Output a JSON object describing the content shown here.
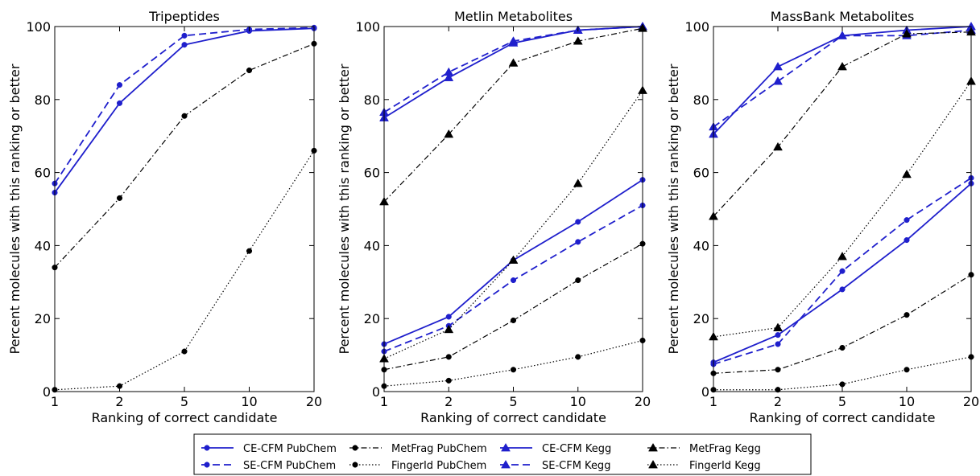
{
  "chart_data": [
    {
      "type": "line",
      "title": "Tripeptides",
      "xlabel": "Ranking of correct candidate",
      "ylabel": "Percent molecules with this ranking or better",
      "categories": [
        "1",
        "2",
        "5",
        "10",
        "20"
      ],
      "ylim": [
        0,
        100
      ],
      "yticks": [
        0,
        20,
        40,
        60,
        80,
        100
      ],
      "grid": false,
      "series": [
        {
          "name": "CE-CFM PubChem",
          "color": "#1f1fcc",
          "style": "solid",
          "marker": "circle",
          "values": [
            54.5,
            79,
            95,
            98.8,
            99.5
          ]
        },
        {
          "name": "SE-CFM PubChem",
          "color": "#1f1fcc",
          "style": "dashed",
          "marker": "circle",
          "values": [
            57,
            84,
            97.5,
            99.2,
            99.7
          ]
        },
        {
          "name": "MetFrag PubChem",
          "color": "#000000",
          "style": "dashdot",
          "marker": "circle",
          "values": [
            34,
            53,
            75.5,
            88,
            95.3
          ]
        },
        {
          "name": "FingerId PubChem",
          "color": "#000000",
          "style": "dotted",
          "marker": "circle",
          "values": [
            0.5,
            1.5,
            11,
            38.5,
            66
          ]
        }
      ]
    },
    {
      "type": "line",
      "title": "Metlin Metabolites",
      "xlabel": "Ranking of correct candidate",
      "ylabel": "Percent molecules with this ranking or better",
      "categories": [
        "1",
        "2",
        "5",
        "10",
        "20"
      ],
      "ylim": [
        0,
        100
      ],
      "yticks": [
        0,
        20,
        40,
        60,
        80,
        100
      ],
      "grid": false,
      "series": [
        {
          "name": "CE-CFM PubChem",
          "color": "#1f1fcc",
          "style": "solid",
          "marker": "circle",
          "values": [
            13,
            20.5,
            36,
            46.5,
            58
          ]
        },
        {
          "name": "SE-CFM PubChem",
          "color": "#1f1fcc",
          "style": "dashed",
          "marker": "circle",
          "values": [
            11,
            18,
            30.5,
            41,
            51
          ]
        },
        {
          "name": "MetFrag PubChem",
          "color": "#000000",
          "style": "dashdot",
          "marker": "circle",
          "values": [
            6,
            9.5,
            19.5,
            30.5,
            40.5
          ]
        },
        {
          "name": "FingerId PubChem",
          "color": "#000000",
          "style": "dotted",
          "marker": "circle",
          "values": [
            1.5,
            3,
            6,
            9.5,
            14
          ]
        },
        {
          "name": "CE-CFM Kegg",
          "color": "#1f1fcc",
          "style": "solid",
          "marker": "triangle",
          "values": [
            75,
            86,
            95.5,
            99,
            100
          ]
        },
        {
          "name": "SE-CFM Kegg",
          "color": "#1f1fcc",
          "style": "dashed",
          "marker": "triangle",
          "values": [
            76.5,
            87.5,
            96,
            99,
            100
          ]
        },
        {
          "name": "MetFrag Kegg",
          "color": "#000000",
          "style": "dashdot",
          "marker": "triangle",
          "values": [
            52,
            70.5,
            90,
            96,
            99.5
          ]
        },
        {
          "name": "FingerId Kegg",
          "color": "#000000",
          "style": "dotted",
          "marker": "triangle",
          "values": [
            9,
            17,
            36,
            57,
            82.5
          ]
        }
      ]
    },
    {
      "type": "line",
      "title": "MassBank Metabolites",
      "xlabel": "Ranking of correct candidate",
      "ylabel": "Percent molecules with this ranking or better",
      "categories": [
        "1",
        "2",
        "5",
        "10",
        "20"
      ],
      "ylim": [
        0,
        100
      ],
      "yticks": [
        0,
        20,
        40,
        60,
        80,
        100
      ],
      "grid": false,
      "series": [
        {
          "name": "CE-CFM PubChem",
          "color": "#1f1fcc",
          "style": "solid",
          "marker": "circle",
          "values": [
            8,
            15.5,
            28,
            41.5,
            57
          ]
        },
        {
          "name": "SE-CFM PubChem",
          "color": "#1f1fcc",
          "style": "dashed",
          "marker": "circle",
          "values": [
            7.5,
            13,
            33,
            47,
            58.5
          ]
        },
        {
          "name": "MetFrag PubChem",
          "color": "#000000",
          "style": "dashdot",
          "marker": "circle",
          "values": [
            5,
            6,
            12,
            21,
            32
          ]
        },
        {
          "name": "FingerId PubChem",
          "color": "#000000",
          "style": "dotted",
          "marker": "circle",
          "values": [
            0.5,
            0.5,
            2,
            6,
            9.5
          ]
        },
        {
          "name": "CE-CFM Kegg",
          "color": "#1f1fcc",
          "style": "solid",
          "marker": "triangle",
          "values": [
            70.5,
            89,
            97.5,
            99,
            100
          ]
        },
        {
          "name": "SE-CFM Kegg",
          "color": "#1f1fcc",
          "style": "dashed",
          "marker": "triangle",
          "values": [
            72.5,
            85,
            97.5,
            97.5,
            99
          ]
        },
        {
          "name": "MetFrag Kegg",
          "color": "#000000",
          "style": "dashdot",
          "marker": "triangle",
          "values": [
            48,
            67,
            89,
            98,
            98.5
          ]
        },
        {
          "name": "FingerId Kegg",
          "color": "#000000",
          "style": "dotted",
          "marker": "triangle",
          "values": [
            15,
            17.5,
            37,
            59.5,
            85
          ]
        }
      ]
    }
  ],
  "legend": {
    "placement": "bottom-center",
    "columns": 4,
    "entries": [
      {
        "label": "CE-CFM PubChem",
        "color": "#1f1fcc",
        "style": "solid",
        "marker": "circle"
      },
      {
        "label": "SE-CFM PubChem",
        "color": "#1f1fcc",
        "style": "dashed",
        "marker": "circle"
      },
      {
        "label": "MetFrag PubChem",
        "color": "#000000",
        "style": "dashdot",
        "marker": "circle"
      },
      {
        "label": "FingerId PubChem",
        "color": "#000000",
        "style": "dotted",
        "marker": "circle"
      },
      {
        "label": "CE-CFM Kegg",
        "color": "#1f1fcc",
        "style": "solid",
        "marker": "triangle"
      },
      {
        "label": "SE-CFM Kegg",
        "color": "#1f1fcc",
        "style": "dashed",
        "marker": "triangle"
      },
      {
        "label": "MetFrag Kegg",
        "color": "#000000",
        "style": "dashdot",
        "marker": "triangle"
      },
      {
        "label": "FingerId Kegg",
        "color": "#000000",
        "style": "dotted",
        "marker": "triangle"
      }
    ]
  }
}
